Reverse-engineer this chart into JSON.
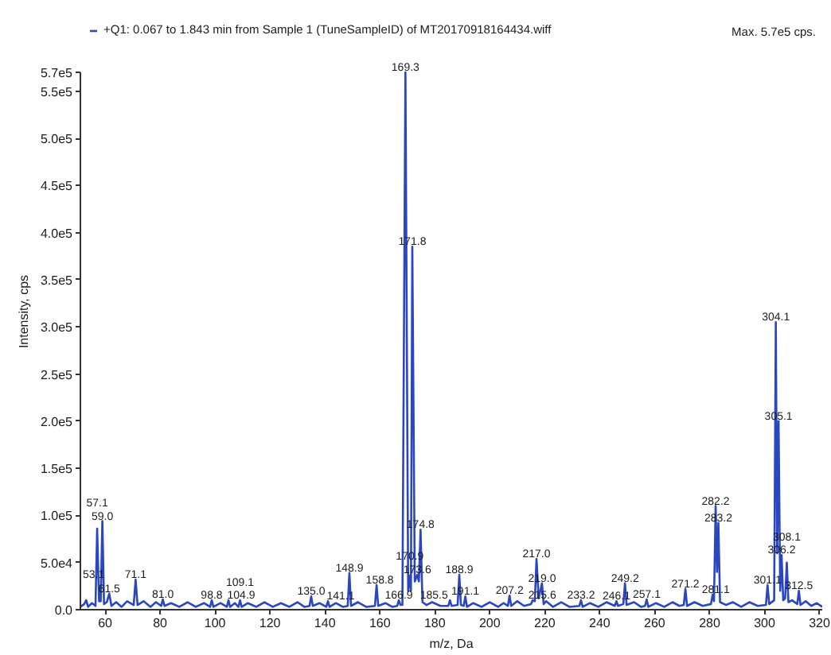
{
  "chart_data": {
    "type": "line",
    "xlabel": "m/z, Da",
    "ylabel": "Intensity, cps",
    "xlim": [
      51,
      321
    ],
    "ylim": [
      0,
      570000
    ],
    "xticks": [
      60,
      80,
      100,
      120,
      140,
      160,
      180,
      200,
      220,
      240,
      260,
      280,
      300,
      320
    ],
    "yticks": [
      {
        "value": 0,
        "label": "0.0"
      },
      {
        "value": 50000,
        "label": "5.0e4"
      },
      {
        "value": 100000,
        "label": "1.0e5"
      },
      {
        "value": 150000,
        "label": "1.5e5"
      },
      {
        "value": 200000,
        "label": "2.0e5"
      },
      {
        "value": 250000,
        "label": "2.5e5"
      },
      {
        "value": 300000,
        "label": "3.0e5"
      },
      {
        "value": 350000,
        "label": "3.5e5"
      },
      {
        "value": 400000,
        "label": "4.0e5"
      },
      {
        "value": 450000,
        "label": "4.5e5"
      },
      {
        "value": 500000,
        "label": "5.0e5"
      },
      {
        "value": 550000,
        "label": "5.5e5"
      },
      {
        "value": 570000,
        "label": "5.7e5"
      }
    ],
    "grid": false,
    "legend": "top left",
    "series": [
      {
        "name": "+Q1: 0.067 to 1.843 min from Sample 1 (TuneSampleID) of MT20170918164434.wiff",
        "color": "#2a46c0",
        "x": [
          51,
          52.4,
          53.1,
          53.8,
          55.2,
          56.5,
          57.1,
          57.8,
          58.4,
          59.0,
          59.6,
          60.6,
          61.5,
          62.3,
          64,
          66,
          68,
          70.4,
          71.1,
          71.8,
          74,
          76.5,
          78.5,
          80.4,
          81.0,
          81.6,
          84,
          87,
          90,
          93,
          96,
          98.2,
          98.8,
          99.4,
          102,
          104.3,
          104.9,
          105.5,
          107.2,
          108.5,
          109.1,
          109.7,
          112,
          115,
          118,
          121,
          124,
          127,
          130,
          132.5,
          134.4,
          135.0,
          135.6,
          138,
          140.5,
          141.1,
          141.7,
          144,
          146.5,
          148.3,
          148.9,
          149.5,
          152,
          155,
          158.2,
          158.8,
          159.4,
          162,
          164.5,
          166.3,
          166.9,
          167.5,
          168.2,
          169.3,
          170.3,
          170.9,
          171.3,
          171.8,
          172.7,
          173.6,
          174.2,
          174.8,
          175.5,
          177,
          179,
          182,
          184.9,
          185.5,
          186.1,
          188.3,
          188.9,
          189.5,
          190.5,
          191.1,
          191.7,
          194,
          197,
          200,
          203,
          205,
          206.6,
          207.2,
          207.8,
          210,
          212.5,
          215,
          215.6,
          216.4,
          217.0,
          217.8,
          219.0,
          219.6,
          220.5,
          223,
          226,
          229,
          232.6,
          233.2,
          233.8,
          236.5,
          239.5,
          242.5,
          245.5,
          246.1,
          246.7,
          248.6,
          249.2,
          249.8,
          252.5,
          255,
          256.5,
          257.1,
          257.7,
          260.5,
          263.5,
          266.5,
          269,
          270.6,
          271.2,
          271.8,
          274.5,
          277.5,
          280.5,
          281.1,
          281.6,
          282.2,
          282.7,
          283.2,
          283.8,
          286,
          288.5,
          291.5,
          294.5,
          297.5,
          300.5,
          301.1,
          301.7,
          303.5,
          304.1,
          304.6,
          305.1,
          305.7,
          306.2,
          306.8,
          307.5,
          308.1,
          308.7,
          310,
          311.9,
          312.5,
          313.1,
          315,
          317,
          319,
          321
        ],
        "values": [
          3000,
          6000,
          10000,
          3000,
          7000,
          4000,
          86000,
          9000,
          9000,
          94000,
          6000,
          8000,
          17000,
          4000,
          8000,
          3000,
          9000,
          5000,
          32000,
          5000,
          9000,
          3000,
          8000,
          4000,
          11000,
          4000,
          7000,
          3000,
          8000,
          3000,
          7000,
          3000,
          10000,
          3000,
          7000,
          3000,
          10000,
          3000,
          7000,
          3000,
          10000,
          3000,
          7000,
          3000,
          8000,
          3000,
          7000,
          3000,
          8000,
          3000,
          4000,
          14000,
          4000,
          7000,
          3000,
          9000,
          3000,
          7000,
          3000,
          4000,
          39000,
          4000,
          8000,
          3000,
          4000,
          26000,
          4000,
          7000,
          3000,
          4000,
          10000,
          5000,
          5000,
          570000,
          20000,
          36000,
          20000,
          385000,
          30000,
          37000,
          30000,
          85000,
          8000,
          5000,
          8000,
          4000,
          4000,
          10000,
          4000,
          5000,
          37000,
          5000,
          4000,
          14000,
          3000,
          7000,
          3000,
          8000,
          3000,
          7000,
          4000,
          15000,
          4000,
          9000,
          4000,
          6000,
          10000,
          9000,
          54000,
          12000,
          28000,
          6000,
          9000,
          3000,
          8000,
          3000,
          4000,
          10000,
          3000,
          7000,
          3000,
          8000,
          4000,
          9000,
          4000,
          6000,
          28000,
          5000,
          8000,
          3000,
          4000,
          11000,
          3000,
          7000,
          3000,
          8000,
          4000,
          5000,
          22000,
          4000,
          8000,
          4000,
          6000,
          16000,
          9000,
          110000,
          40000,
          92000,
          8000,
          5000,
          8000,
          3000,
          8000,
          4000,
          5000,
          26000,
          6000,
          10000,
          305000,
          60000,
          200000,
          20000,
          58000,
          10000,
          12000,
          50000,
          8000,
          10000,
          6000,
          20000,
          5000,
          9000,
          4000,
          7000,
          3000
        ]
      }
    ],
    "annotations": [
      "Max. 5.7e5 cps.",
      {
        "text": "53.1",
        "x": 53.1,
        "y": 10000
      },
      {
        "text": "57.1",
        "x": 57.1,
        "y": 86000
      },
      {
        "text": "59.0",
        "x": 59.0,
        "y": 94000
      },
      {
        "text": "61.5",
        "x": 61.5,
        "y": 17000
      },
      {
        "text": "71.1",
        "x": 71.1,
        "y": 32000
      },
      {
        "text": "81.0",
        "x": 81.0,
        "y": 11000
      },
      {
        "text": "98.8",
        "x": 98.8,
        "y": 10000
      },
      {
        "text": "104.9",
        "x": 104.9,
        "y": 10000
      },
      {
        "text": "109.1",
        "x": 109.1,
        "y": 10000
      },
      {
        "text": "135.0",
        "x": 135.0,
        "y": 14000
      },
      {
        "text": "141.1",
        "x": 141.1,
        "y": 9000
      },
      {
        "text": "148.9",
        "x": 148.9,
        "y": 39000
      },
      {
        "text": "158.8",
        "x": 158.8,
        "y": 26000
      },
      {
        "text": "166.9",
        "x": 166.9,
        "y": 10000
      },
      {
        "text": "169.3",
        "x": 169.3,
        "y": 570000
      },
      {
        "text": "170.9",
        "x": 170.9,
        "y": 36000
      },
      {
        "text": "171.8",
        "x": 171.8,
        "y": 385000
      },
      {
        "text": "173.6",
        "x": 173.6,
        "y": 37000
      },
      {
        "text": "174.8",
        "x": 174.8,
        "y": 85000
      },
      {
        "text": "185.5",
        "x": 185.5,
        "y": 10000
      },
      {
        "text": "188.9",
        "x": 188.9,
        "y": 37000
      },
      {
        "text": "191.1",
        "x": 191.1,
        "y": 14000
      },
      {
        "text": "207.2",
        "x": 207.2,
        "y": 15000
      },
      {
        "text": "215.6",
        "x": 215.6,
        "y": 10000
      },
      {
        "text": "217.0",
        "x": 217.0,
        "y": 54000
      },
      {
        "text": "219.0",
        "x": 219.0,
        "y": 28000
      },
      {
        "text": "233.2",
        "x": 233.2,
        "y": 10000
      },
      {
        "text": "246.1",
        "x": 246.1,
        "y": 9000
      },
      {
        "text": "249.2",
        "x": 249.2,
        "y": 28000
      },
      {
        "text": "257.1",
        "x": 257.1,
        "y": 11000
      },
      {
        "text": "271.2",
        "x": 271.2,
        "y": 22000
      },
      {
        "text": "281.1",
        "x": 281.1,
        "y": 16000
      },
      {
        "text": "282.2",
        "x": 282.2,
        "y": 110000
      },
      {
        "text": "283.2",
        "x": 283.2,
        "y": 92000
      },
      {
        "text": "301.1",
        "x": 301.1,
        "y": 26000
      },
      {
        "text": "304.1",
        "x": 304.1,
        "y": 305000
      },
      {
        "text": "305.1",
        "x": 305.1,
        "y": 200000
      },
      {
        "text": "306.2",
        "x": 306.2,
        "y": 58000
      },
      {
        "text": "308.1",
        "x": 308.1,
        "y": 50000
      },
      {
        "text": "312.5",
        "x": 312.5,
        "y": 20000
      }
    ]
  }
}
